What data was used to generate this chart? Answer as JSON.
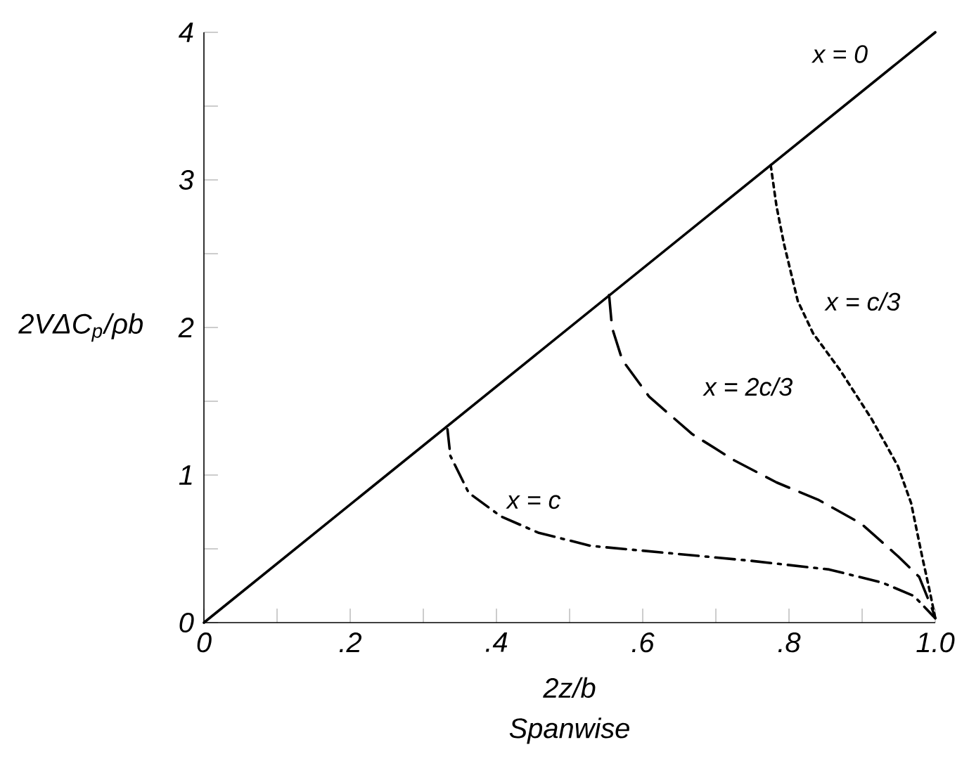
{
  "chart_data": {
    "type": "line",
    "xlabel": "2z/b",
    "ylabel": "2VΔC$_{p}$/ρb",
    "annotations": [
      "Spanwise"
    ],
    "xlim": [
      0,
      1.0
    ],
    "ylim": [
      0,
      4
    ],
    "xticks": [
      0,
      {
        "value": 0.1,
        "label": null
      },
      {
        "value": 0.2,
        "label": ".2"
      },
      {
        "value": 0.3,
        "label": null
      },
      {
        "value": 0.4,
        "label": ".4"
      },
      {
        "value": 0.5,
        "label": null
      },
      {
        "value": 0.6,
        "label": ".6"
      },
      {
        "value": 0.7,
        "label": null
      },
      {
        "value": 0.8,
        "label": ".8"
      },
      {
        "value": 0.9,
        "label": null
      },
      {
        "value": 1.0,
        "label": "1.0"
      }
    ],
    "yticks": [
      0,
      {
        "value": 0.5,
        "label": null
      },
      1,
      {
        "value": 1.5,
        "label": null
      },
      2,
      {
        "value": 2.5,
        "label": null
      },
      3,
      {
        "value": 3.5,
        "label": null
      },
      4
    ],
    "grid": false,
    "marker": "none",
    "series": [
      {
        "name": "x = 0",
        "color": "#000000",
        "line_style": "solid",
        "x": [
          0,
          1.0
        ],
        "values": [
          0,
          4
        ]
      },
      {
        "name": "x = c/3",
        "color": "#000000",
        "line_style": "dotted",
        "x": [
          0.775,
          0.783,
          0.793,
          0.812,
          0.833,
          0.87,
          0.913,
          0.949,
          0.967,
          0.982,
          0.993,
          1.0
        ],
        "values": [
          3.1,
          2.82,
          2.57,
          2.18,
          1.96,
          1.71,
          1.38,
          1.06,
          0.81,
          0.45,
          0.2,
          0.03
        ]
      },
      {
        "name": "x = 2c/3",
        "color": "#000000",
        "line_style": "dashed",
        "x": [
          0.554,
          0.558,
          0.572,
          0.609,
          0.667,
          0.725,
          0.783,
          0.841,
          0.899,
          0.949,
          0.978,
          0.996,
          1.0
        ],
        "values": [
          2.22,
          2.0,
          1.78,
          1.53,
          1.28,
          1.1,
          0.95,
          0.83,
          0.67,
          0.45,
          0.31,
          0.09,
          0.03
        ]
      },
      {
        "name": "x = c",
        "color": "#000000",
        "line_style": "dashdot",
        "x": [
          0.333,
          0.337,
          0.362,
          0.406,
          0.457,
          0.529,
          0.638,
          0.746,
          0.855,
          0.928,
          0.971,
          0.996,
          1.0
        ],
        "values": [
          1.31,
          1.13,
          0.88,
          0.72,
          0.61,
          0.52,
          0.47,
          0.42,
          0.36,
          0.27,
          0.18,
          0.05,
          0.03
        ]
      }
    ]
  }
}
